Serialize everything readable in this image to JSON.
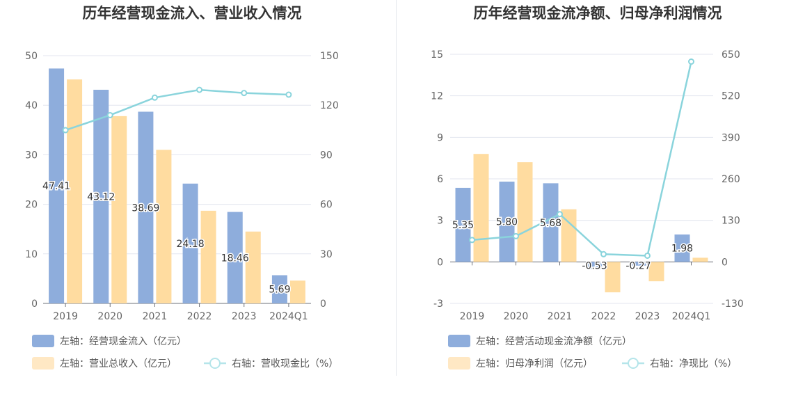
{
  "charts": [
    {
      "title": "历年经营现金流入、营业收入情况",
      "chart_data": {
        "type": "bar",
        "categories": [
          "2019",
          "2020",
          "2021",
          "2022",
          "2023",
          "2024Q1"
        ],
        "left_axis": {
          "ylim": [
            0,
            50
          ],
          "ticks": [
            "0",
            "10",
            "20",
            "30",
            "40",
            "50"
          ]
        },
        "right_axis": {
          "ylim": [
            0,
            150
          ],
          "ticks": [
            "0",
            "30",
            "60",
            "90",
            "120",
            "150"
          ]
        },
        "series": [
          {
            "name": "左轴：经营现金流入（亿元）",
            "type": "bar",
            "axis": "left",
            "color": "#8eaddc",
            "values": [
              47.41,
              43.12,
              38.69,
              24.18,
              18.46,
              5.69
            ],
            "labels": [
              "47.41",
              "43.12",
              "38.69",
              "24.18",
              "18.46",
              "5.69"
            ]
          },
          {
            "name": "左轴：营业总收入（亿元）",
            "type": "bar",
            "axis": "left",
            "color": "#ffdca0",
            "values": [
              45.2,
              37.8,
              31.0,
              18.7,
              14.5,
              4.6
            ]
          },
          {
            "name": "右轴：营收现金比（%）",
            "type": "line",
            "axis": "right",
            "color": "#8ad4dc",
            "values": [
              104.9,
              114.0,
              124.6,
              129.3,
              127.4,
              126.4
            ]
          }
        ],
        "legend_position": "bottom-left"
      }
    },
    {
      "title": "历年经营现金流净额、归母净利润情况",
      "chart_data": {
        "type": "bar",
        "categories": [
          "2019",
          "2020",
          "2021",
          "2022",
          "2023",
          "2024Q1"
        ],
        "left_axis": {
          "ylim": [
            -3,
            15
          ],
          "ticks": [
            "-3",
            "0",
            "3",
            "6",
            "9",
            "12",
            "15"
          ]
        },
        "right_axis": {
          "ylim": [
            -130,
            650
          ],
          "ticks": [
            "-130",
            "0",
            "130",
            "260",
            "390",
            "520",
            "650"
          ]
        },
        "series": [
          {
            "name": "左轴：经营活动现金流净额（亿元）",
            "type": "bar",
            "axis": "left",
            "color": "#8eaddc",
            "values": [
              5.35,
              5.8,
              5.68,
              -0.53,
              -0.27,
              1.98
            ],
            "labels": [
              "5.35",
              "5.80",
              "5.68",
              "-0.53",
              "-0.27",
              "1.98"
            ]
          },
          {
            "name": "左轴：归母净利润（亿元）",
            "type": "bar",
            "axis": "left",
            "color": "#ffdca0",
            "values": [
              7.8,
              7.2,
              3.8,
              -2.2,
              -1.4,
              0.3
            ]
          },
          {
            "name": "右轴：净现比（%）",
            "type": "line",
            "axis": "right",
            "color": "#8ad4dc",
            "values": [
              68.6,
              80.6,
              149.5,
              24.1,
              19.3,
              627.0
            ]
          }
        ],
        "legend_position": "bottom-left"
      }
    }
  ]
}
